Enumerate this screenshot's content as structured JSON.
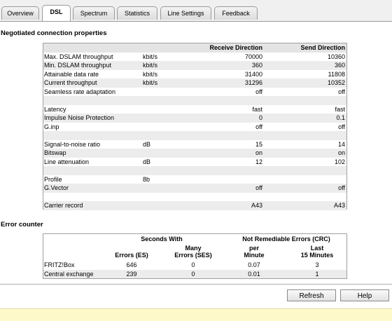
{
  "tabs": [
    "Overview",
    "DSL",
    "Spectrum",
    "Statistics",
    "Line Settings",
    "Feedback"
  ],
  "connection": {
    "title": "Negotiated connection properties",
    "headers": {
      "receive": "Receive Direction",
      "send": "Send Direction"
    },
    "groups": [
      [
        {
          "label": "Max. DSLAM throughput",
          "unit": "kbit/s",
          "receive": "70000",
          "send": "10360"
        },
        {
          "label": "Min. DSLAM throughput",
          "unit": "kbit/s",
          "receive": "360",
          "send": "360"
        },
        {
          "label": "Attainable data rate",
          "unit": "kbit/s",
          "receive": "31400",
          "send": "11808"
        },
        {
          "label": "Current throughput",
          "unit": "kbit/s",
          "receive": "31296",
          "send": "10352"
        },
        {
          "label": "Seamless rate adaptation",
          "receive": "off",
          "send": "off"
        }
      ],
      [
        {
          "label": "Latency",
          "receive": "fast",
          "send": "fast"
        },
        {
          "label": "Impulse Noise Protection",
          "receive": "0",
          "send": "0.1"
        },
        {
          "label": "G.inp",
          "receive": "off",
          "send": "off"
        }
      ],
      [
        {
          "label": "Signal-to-noise ratio",
          "unit": "dB",
          "receive": "15",
          "send": "14"
        },
        {
          "label": "Bitswap",
          "receive": "on",
          "send": "on"
        },
        {
          "label": "Line attenuation",
          "unit": "dB",
          "receive": "12",
          "send": "102"
        }
      ],
      [
        {
          "label": "Profile",
          "unit": "8b"
        },
        {
          "label": "G.Vector",
          "receive": "off",
          "send": "off"
        }
      ],
      [
        {
          "label": "Carrier record",
          "receive": "A43",
          "send": "A43"
        }
      ]
    ]
  },
  "errors": {
    "title": "Error counter",
    "group_headers": [
      "Seconds With",
      "Not Remediable Errors (CRC)"
    ],
    "column_headers": [
      [
        "Errors (ES)"
      ],
      [
        "Many",
        "Errors (SES)"
      ],
      [
        "per",
        "Minute"
      ],
      [
        "Last",
        "15 Minutes"
      ]
    ],
    "rows": [
      {
        "label": "FRITZ!Box",
        "values": [
          "646",
          "0",
          "0.07",
          "3"
        ]
      },
      {
        "label": "Central exchange",
        "values": [
          "239",
          "0",
          "0.01",
          "1"
        ]
      }
    ]
  },
  "buttons": [
    "Refresh",
    "Help"
  ]
}
